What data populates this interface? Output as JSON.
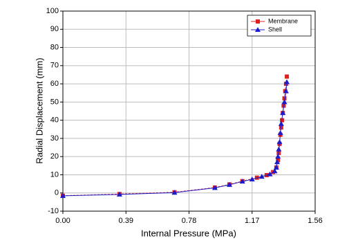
{
  "chart_data": {
    "type": "line",
    "x_label": "Internal Pressure (MPa)",
    "y_label": "Radial Displacement (mm)",
    "xlim": [
      0,
      1.56
    ],
    "xticks": [
      {
        "value": 0,
        "label": "0.00"
      },
      0.39,
      0.78,
      1.17,
      1.56
    ],
    "ylim": [
      -10,
      100
    ],
    "yticks": [
      -10,
      0,
      10,
      20,
      30,
      40,
      50,
      60,
      70,
      80,
      90,
      100
    ],
    "grid": true,
    "legend": "upper right",
    "series": [
      {
        "name": "Membrane",
        "color": "#e02020",
        "marker": "square",
        "x": [
          0,
          0.35,
          0.69,
          0.94,
          1.03,
          1.11,
          1.2,
          1.26,
          1.3,
          1.32,
          1.33,
          1.335,
          1.34,
          1.345,
          1.35,
          1.355,
          1.36,
          1.365,
          1.37,
          1.375,
          1.38,
          1.385
        ],
        "values": [
          -1.5,
          -0.6,
          0.4,
          3,
          4.7,
          6.5,
          8.4,
          9.8,
          11.5,
          14,
          18,
          22,
          27,
          32,
          36,
          40,
          44,
          48,
          52,
          56,
          60,
          64
        ]
      },
      {
        "name": "Shell",
        "color": "#1c1ccc",
        "marker": "triangle",
        "x": [
          0,
          0.35,
          0.69,
          0.94,
          1.03,
          1.11,
          1.17,
          1.23,
          1.28,
          1.31,
          1.32,
          1.325,
          1.33,
          1.335,
          1.34,
          1.345,
          1.35,
          1.36,
          1.37,
          1.38,
          1.385
        ],
        "values": [
          -1.6,
          -0.8,
          0.2,
          2.8,
          4.5,
          6.3,
          7.5,
          9,
          10.3,
          12,
          14,
          17,
          20,
          24,
          28,
          33,
          38,
          44,
          50,
          56,
          61
        ]
      }
    ]
  }
}
